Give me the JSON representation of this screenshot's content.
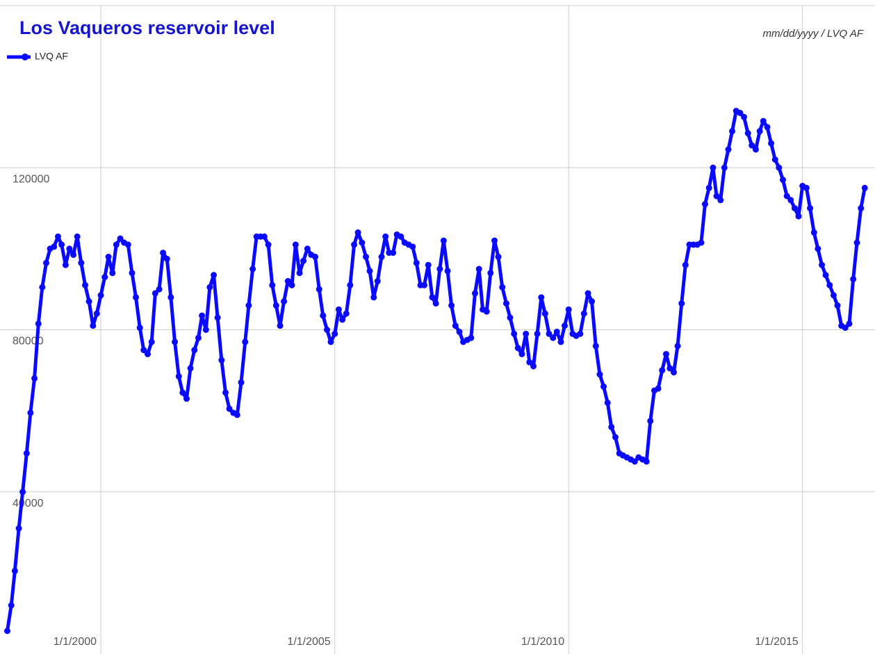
{
  "chart_data": {
    "type": "line",
    "title": "Los Vaqueros reservoir level",
    "annotation": "mm/dd/yyyy / LVQ AF",
    "x": [
      "1/1/1998",
      "2/1/1998",
      "3/1/1998",
      "4/1/1998",
      "5/1/1998",
      "6/1/1998",
      "7/1/1998",
      "8/1/1998",
      "9/1/1998",
      "10/1/1998",
      "11/1/1998",
      "12/1/1998",
      "1/1/1999",
      "2/1/1999",
      "3/1/1999",
      "4/1/1999",
      "5/1/1999",
      "6/1/1999",
      "7/1/1999",
      "8/1/1999",
      "9/1/1999",
      "10/1/1999",
      "11/1/1999",
      "12/1/1999",
      "1/1/2000",
      "2/1/2000",
      "3/1/2000",
      "4/1/2000",
      "5/1/2000",
      "6/1/2000",
      "7/1/2000",
      "8/1/2000",
      "9/1/2000",
      "10/1/2000",
      "11/1/2000",
      "12/1/2000",
      "1/1/2001",
      "2/1/2001",
      "3/1/2001",
      "4/1/2001",
      "5/1/2001",
      "6/1/2001",
      "7/1/2001",
      "8/1/2001",
      "9/1/2001",
      "10/1/2001",
      "11/1/2001",
      "12/1/2001",
      "1/1/2002",
      "2/1/2002",
      "3/1/2002",
      "4/1/2002",
      "5/1/2002",
      "6/1/2002",
      "7/1/2002",
      "8/1/2002",
      "9/1/2002",
      "10/1/2002",
      "11/1/2002",
      "12/1/2002",
      "1/1/2003",
      "2/1/2003",
      "3/1/2003",
      "4/1/2003",
      "5/1/2003",
      "6/1/2003",
      "7/1/2003",
      "8/1/2003",
      "9/1/2003",
      "10/1/2003",
      "11/1/2003",
      "12/1/2003",
      "1/1/2004",
      "2/1/2004",
      "3/1/2004",
      "4/1/2004",
      "5/1/2004",
      "6/1/2004",
      "7/1/2004",
      "8/1/2004",
      "9/1/2004",
      "10/1/2004",
      "11/1/2004",
      "12/1/2004",
      "1/1/2005",
      "2/1/2005",
      "3/1/2005",
      "4/1/2005",
      "5/1/2005",
      "6/1/2005",
      "7/1/2005",
      "8/1/2005",
      "9/1/2005",
      "10/1/2005",
      "11/1/2005",
      "12/1/2005",
      "1/1/2006",
      "2/1/2006",
      "3/1/2006",
      "4/1/2006",
      "5/1/2006",
      "6/1/2006",
      "7/1/2006",
      "8/1/2006",
      "9/1/2006",
      "10/1/2006",
      "11/1/2006",
      "12/1/2006",
      "1/1/2007",
      "2/1/2007",
      "3/1/2007",
      "4/1/2007",
      "5/1/2007",
      "6/1/2007",
      "7/1/2007",
      "8/1/2007",
      "9/1/2007",
      "10/1/2007",
      "11/1/2007",
      "12/1/2007",
      "1/1/2008",
      "2/1/2008",
      "3/1/2008",
      "4/1/2008",
      "5/1/2008",
      "6/1/2008",
      "7/1/2008",
      "8/1/2008",
      "9/1/2008",
      "10/1/2008",
      "11/1/2008",
      "12/1/2008",
      "1/1/2009",
      "2/1/2009",
      "3/1/2009",
      "4/1/2009",
      "5/1/2009",
      "6/1/2009",
      "7/1/2009",
      "8/1/2009",
      "9/1/2009",
      "10/1/2009",
      "11/1/2009",
      "12/1/2009",
      "1/1/2010",
      "2/1/2010",
      "3/1/2010",
      "4/1/2010",
      "5/1/2010",
      "6/1/2010",
      "7/1/2010",
      "8/1/2010",
      "9/1/2010",
      "10/1/2010",
      "11/1/2010",
      "12/1/2010",
      "1/1/2011",
      "2/1/2011",
      "3/1/2011",
      "4/1/2011",
      "5/1/2011",
      "6/1/2011",
      "7/1/2011",
      "8/1/2011",
      "9/1/2011",
      "10/1/2011",
      "11/1/2011",
      "12/1/2011",
      "1/1/2012",
      "2/1/2012",
      "3/1/2012",
      "4/1/2012",
      "5/1/2012",
      "6/1/2012",
      "7/1/2012",
      "8/1/2012",
      "9/1/2012",
      "10/1/2012",
      "11/1/2012",
      "12/1/2012",
      "1/1/2013",
      "2/1/2013",
      "3/1/2013",
      "4/1/2013",
      "5/1/2013",
      "6/1/2013",
      "7/1/2013",
      "8/1/2013",
      "9/1/2013",
      "10/1/2013",
      "11/1/2013",
      "12/1/2013",
      "1/1/2014",
      "2/1/2014",
      "3/1/2014",
      "4/1/2014",
      "5/1/2014",
      "6/1/2014",
      "7/1/2014",
      "8/1/2014",
      "9/1/2014",
      "10/1/2014",
      "11/1/2014",
      "12/1/2014",
      "1/1/2015",
      "2/1/2015",
      "3/1/2015",
      "4/1/2015",
      "5/1/2015",
      "6/1/2015",
      "7/1/2015",
      "8/1/2015",
      "9/1/2015",
      "10/1/2015",
      "11/1/2015",
      "12/1/2015",
      "1/1/2016",
      "2/1/2016",
      "3/1/2016",
      "4/1/2016",
      "5/1/2016"
    ],
    "series": [
      {
        "name": "LVQ AF",
        "color": "#0a0aff",
        "values": [
          5700,
          12000,
          20500,
          31000,
          40000,
          49500,
          59500,
          68000,
          81500,
          90500,
          96500,
          100000,
          100500,
          103000,
          101000,
          96000,
          100000,
          98500,
          103000,
          96500,
          91000,
          87000,
          81000,
          84000,
          88500,
          93000,
          98000,
          94000,
          101000,
          102500,
          101500,
          101000,
          94000,
          88000,
          80500,
          75000,
          74000,
          77000,
          89000,
          90000,
          99000,
          97500,
          88000,
          77000,
          68500,
          64500,
          63000,
          70500,
          75000,
          78000,
          83500,
          80000,
          90500,
          93500,
          83000,
          72500,
          64500,
          60500,
          59500,
          59000,
          67000,
          77000,
          86000,
          95000,
          103000,
          103000,
          103000,
          101000,
          91000,
          86000,
          81000,
          87000,
          92000,
          91000,
          101000,
          94000,
          97000,
          100000,
          98500,
          98000,
          90000,
          83500,
          80000,
          77000,
          79000,
          85000,
          82500,
          84000,
          91000,
          101000,
          104000,
          101500,
          98000,
          94500,
          88000,
          92000,
          98000,
          103000,
          99000,
          99000,
          103500,
          103000,
          101500,
          101000,
          100500,
          96500,
          91000,
          91000,
          96000,
          88000,
          86500,
          95000,
          102000,
          94500,
          86000,
          81000,
          79500,
          77000,
          77500,
          78000,
          89000,
          95000,
          85000,
          84500,
          94000,
          102000,
          98000,
          90500,
          86500,
          83000,
          79000,
          75500,
          74000,
          79000,
          72000,
          71000,
          79000,
          88000,
          84000,
          79000,
          78000,
          79500,
          77000,
          81000,
          85000,
          79000,
          78500,
          79000,
          84000,
          89000,
          87000,
          76000,
          69000,
          66000,
          62000,
          56000,
          53500,
          49500,
          49000,
          48500,
          48000,
          47500,
          48500,
          48000,
          47500,
          57500,
          65000,
          65500,
          70000,
          74000,
          70500,
          69500,
          76000,
          86500,
          96000,
          101000,
          101000,
          101000,
          101500,
          111000,
          115000,
          120000,
          113000,
          112000,
          120000,
          124500,
          129000,
          134000,
          133500,
          132500,
          128500,
          125500,
          124500,
          129000,
          131500,
          130000,
          126000,
          122000,
          120000,
          117000,
          113000,
          112000,
          110000,
          108000,
          115500,
          115000,
          110000,
          104000,
          100000,
          96000,
          93500,
          91000,
          88500,
          86000,
          81000,
          80500,
          81500,
          92500,
          101500,
          110000,
          115000
        ]
      }
    ],
    "xlim": [
      "11/5/1997",
      "7/20/2016"
    ],
    "xticks": [
      "1/1/2000",
      "1/1/2005",
      "1/1/2010",
      "1/1/2015"
    ],
    "ylim": [
      0,
      160000
    ],
    "yticks": [
      40000,
      80000,
      120000
    ],
    "grid": true,
    "legend": "top-left"
  }
}
